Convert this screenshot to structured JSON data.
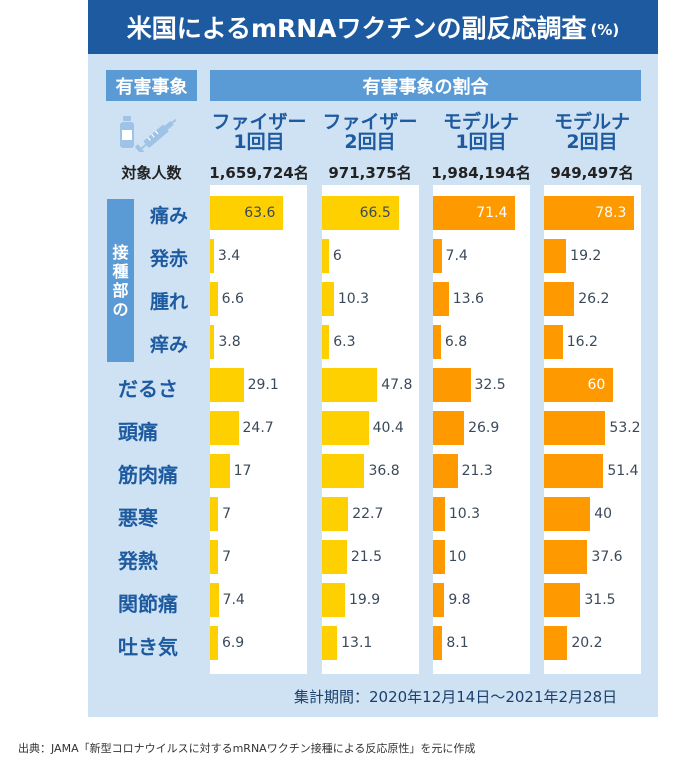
{
  "title": "米国によるmRNAワクチンの副反応調査",
  "title_unit": "(%)",
  "header": {
    "event": "有害事象",
    "rate": "有害事象の割合"
  },
  "n_label": "対象人数",
  "site_label": [
    "接",
    "種",
    "部",
    "の"
  ],
  "columns": [
    {
      "line1": "ファイザー",
      "line2": "1回目",
      "n": "1,659,724名",
      "color": "#ffd000"
    },
    {
      "line1": "ファイザー",
      "line2": "2回目",
      "n": "971,375名",
      "color": "#ffd000"
    },
    {
      "line1": "モデルナ",
      "line2": "1回目",
      "n": "1,984,194名",
      "color": "#ff9900"
    },
    {
      "line1": "モデルナ",
      "line2": "2回目",
      "n": "949,497名",
      "color": "#ff9900"
    }
  ],
  "colors": {
    "title_bg": "#1e5aa0",
    "header_bg": "#5b9bd5",
    "panel_bg": "#cfe2f3",
    "pfizer": "#ffd000",
    "moderna": "#ff9900"
  },
  "chart_data": {
    "type": "bar",
    "orientation": "horizontal",
    "title": "米国によるmRNAワクチンの副反応調査(%)",
    "categories": [
      "痛み",
      "発赤",
      "腫れ",
      "痒み",
      "だるさ",
      "頭痛",
      "筋肉痛",
      "悪寒",
      "発熱",
      "関節痛",
      "吐き気"
    ],
    "injection_site_categories": [
      "痛み",
      "発赤",
      "腫れ",
      "痒み"
    ],
    "series": [
      {
        "name": "ファイザー1回目",
        "values": [
          63.6,
          3.4,
          6.6,
          3.8,
          29.1,
          24.7,
          17,
          7,
          7,
          7.4,
          6.9
        ]
      },
      {
        "name": "ファイザー2回目",
        "values": [
          66.5,
          6,
          10.3,
          6.3,
          47.8,
          40.4,
          36.8,
          22.7,
          21.5,
          19.9,
          13.1
        ]
      },
      {
        "name": "モデルナ1回目",
        "values": [
          71.4,
          7.4,
          13.6,
          6.8,
          32.5,
          26.9,
          21.3,
          10.3,
          10,
          9.8,
          8.1
        ]
      },
      {
        "name": "モデルナ2回目",
        "values": [
          78.3,
          19.2,
          26.2,
          16.2,
          60,
          53.2,
          51.4,
          40,
          37.6,
          31.5,
          20.2
        ]
      }
    ],
    "xlim": [
      0,
      84
    ],
    "unit": "%"
  },
  "period": "集計期間：2020年12月14日〜2021年2月28日",
  "source": "出典：JAMA「新型コロナウイルスに対するmRNAワクチン接種による反応原性」を元に作成"
}
